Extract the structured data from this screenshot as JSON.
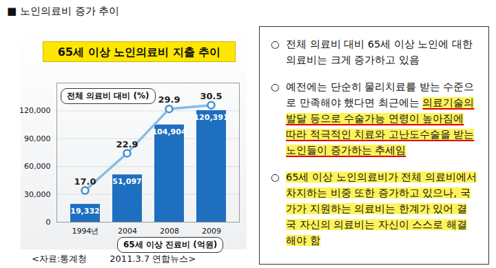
{
  "header": "■ 노인의료비 증가 추이",
  "chart_data": {
    "type": "bar",
    "title": "65세 이상 노인의료비 지출 추이",
    "categories": [
      "1994년",
      "2004",
      "2008",
      "2009"
    ],
    "series": [
      {
        "name": "65세 이상 진료비 (억원)",
        "type": "bar",
        "color": "#1f6fc0",
        "values": [
          19332,
          51097,
          104904,
          120391
        ],
        "value_labels": [
          "19,332",
          "51,097",
          "104,904",
          "120,391"
        ]
      },
      {
        "name": "전체 의료비 대비 (%)",
        "type": "line",
        "axis": "y2",
        "color": "#86bde8",
        "marker": "circle",
        "values": [
          17,
          22.9,
          29.9,
          30.5
        ],
        "value_labels": [
          "17.0",
          "22.9",
          "29.9",
          "30.5"
        ]
      }
    ],
    "ylim": [
      0,
      150000
    ],
    "yticks": [
      0,
      {
        "value": 30000,
        "label": "30,000"
      },
      {
        "value": 60000,
        "label": "60,000"
      },
      {
        "value": 90000,
        "label": "90,000"
      },
      {
        "value": 120000,
        "label": "120,000"
      }
    ],
    "y2lim": [
      12,
      34
    ],
    "y2ticks": [],
    "grid": true,
    "data_labels": true
  },
  "source": "<자료:통계청        2011.3.7 연합뉴스>",
  "text_box": {
    "items": [
      {
        "plain": "전체 의료비 대비 65세 이상 노인에 대한 의료비는 크게 증가하고 있음"
      },
      {
        "plain": "예전에는 단순히 물리치료를 받는 수준으로 만족해야 했다면 최근에는 ",
        "highlighted": "의료기술의 발달 등으로 수술가능 연령이 높아짐에 따라 적극적인 치료와 고난도수술을 받는 노인들이 증가하는 추세임"
      },
      {
        "marked": "65세 이상 노인의료비가 전체 의료비에서 차지하는 비중 또한 증가하고 있으나, 국가가 지원하는 의료비는 한계가 있어 결국 자신의 의료비는 자신이 스스로 해결해야 함"
      }
    ],
    "bullet": "○"
  }
}
